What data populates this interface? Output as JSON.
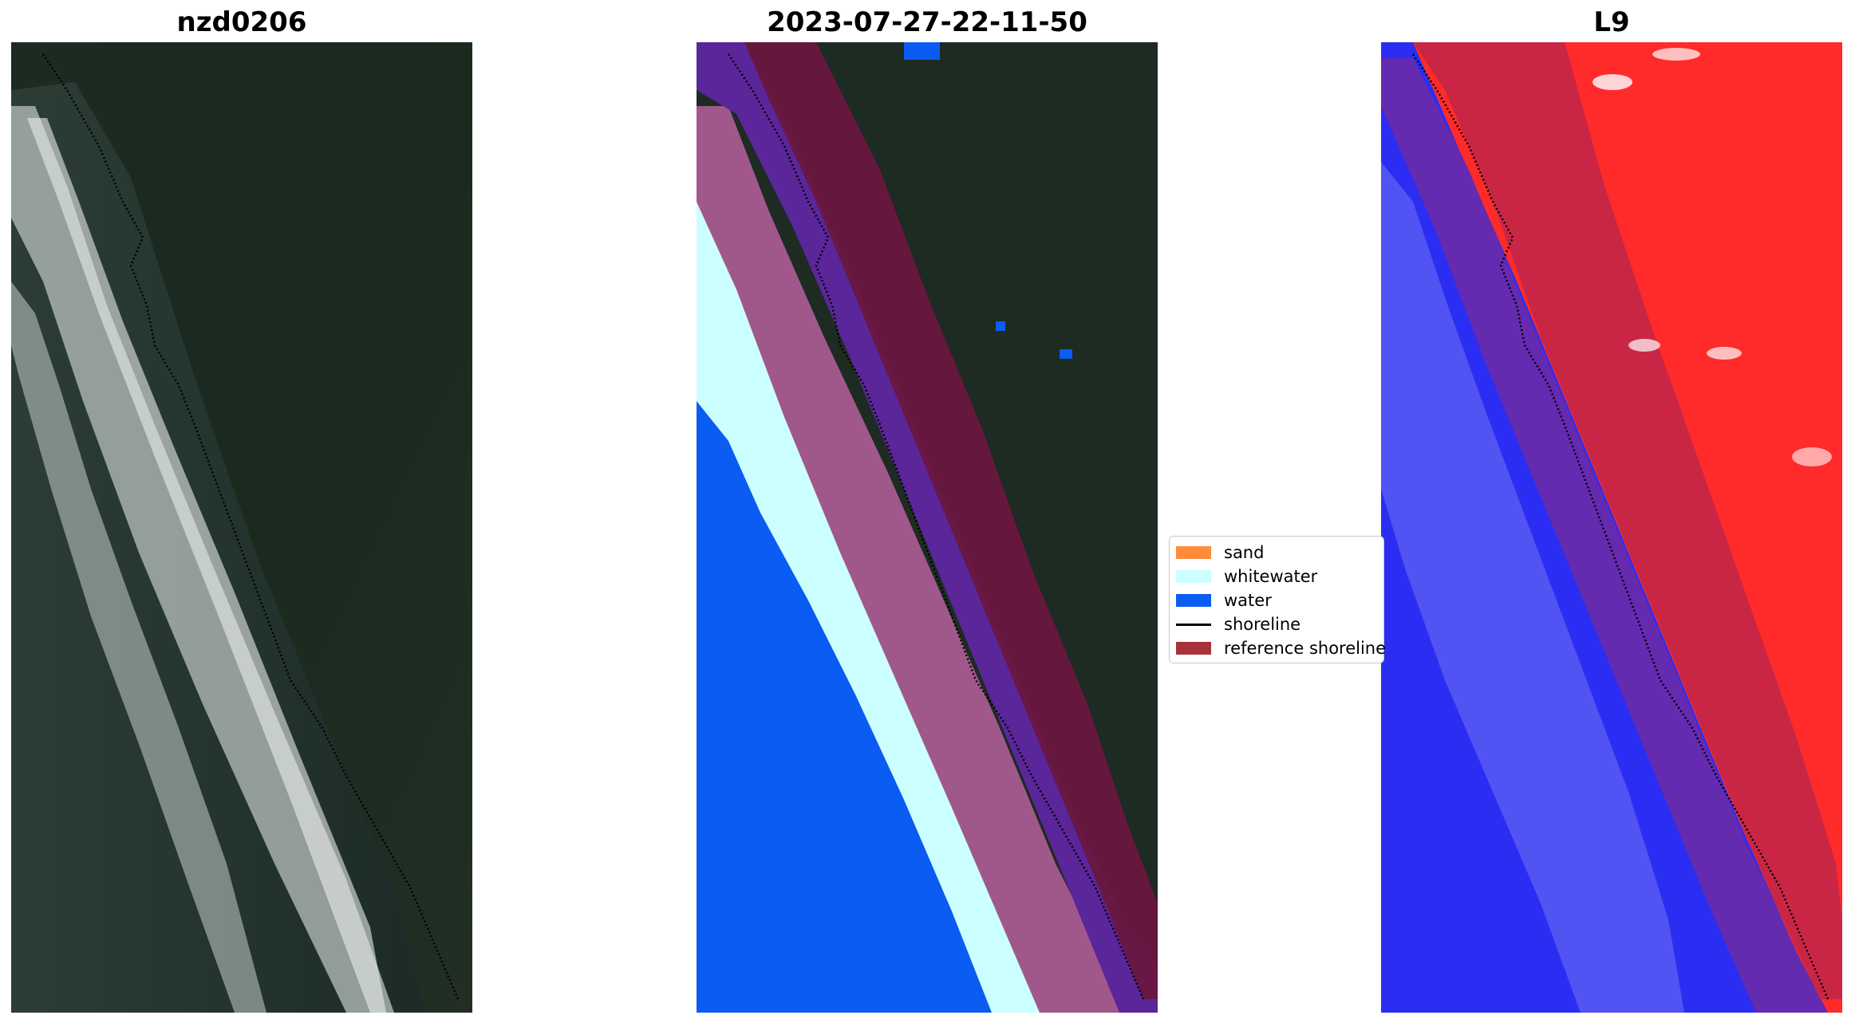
{
  "panels": {
    "left_title": "nzd0206",
    "middle_title": "2023-07-27-22-11-50",
    "right_title": "L9"
  },
  "legend": {
    "items": [
      {
        "label": "sand",
        "color": "#ff8c3a"
      },
      {
        "label": "whitewater",
        "color": "#ccffff"
      },
      {
        "label": "water",
        "color": "#0a5cf2"
      },
      {
        "label": "shoreline",
        "color": "#000000"
      },
      {
        "label": "reference shoreline",
        "color": "#a8323a"
      }
    ]
  }
}
